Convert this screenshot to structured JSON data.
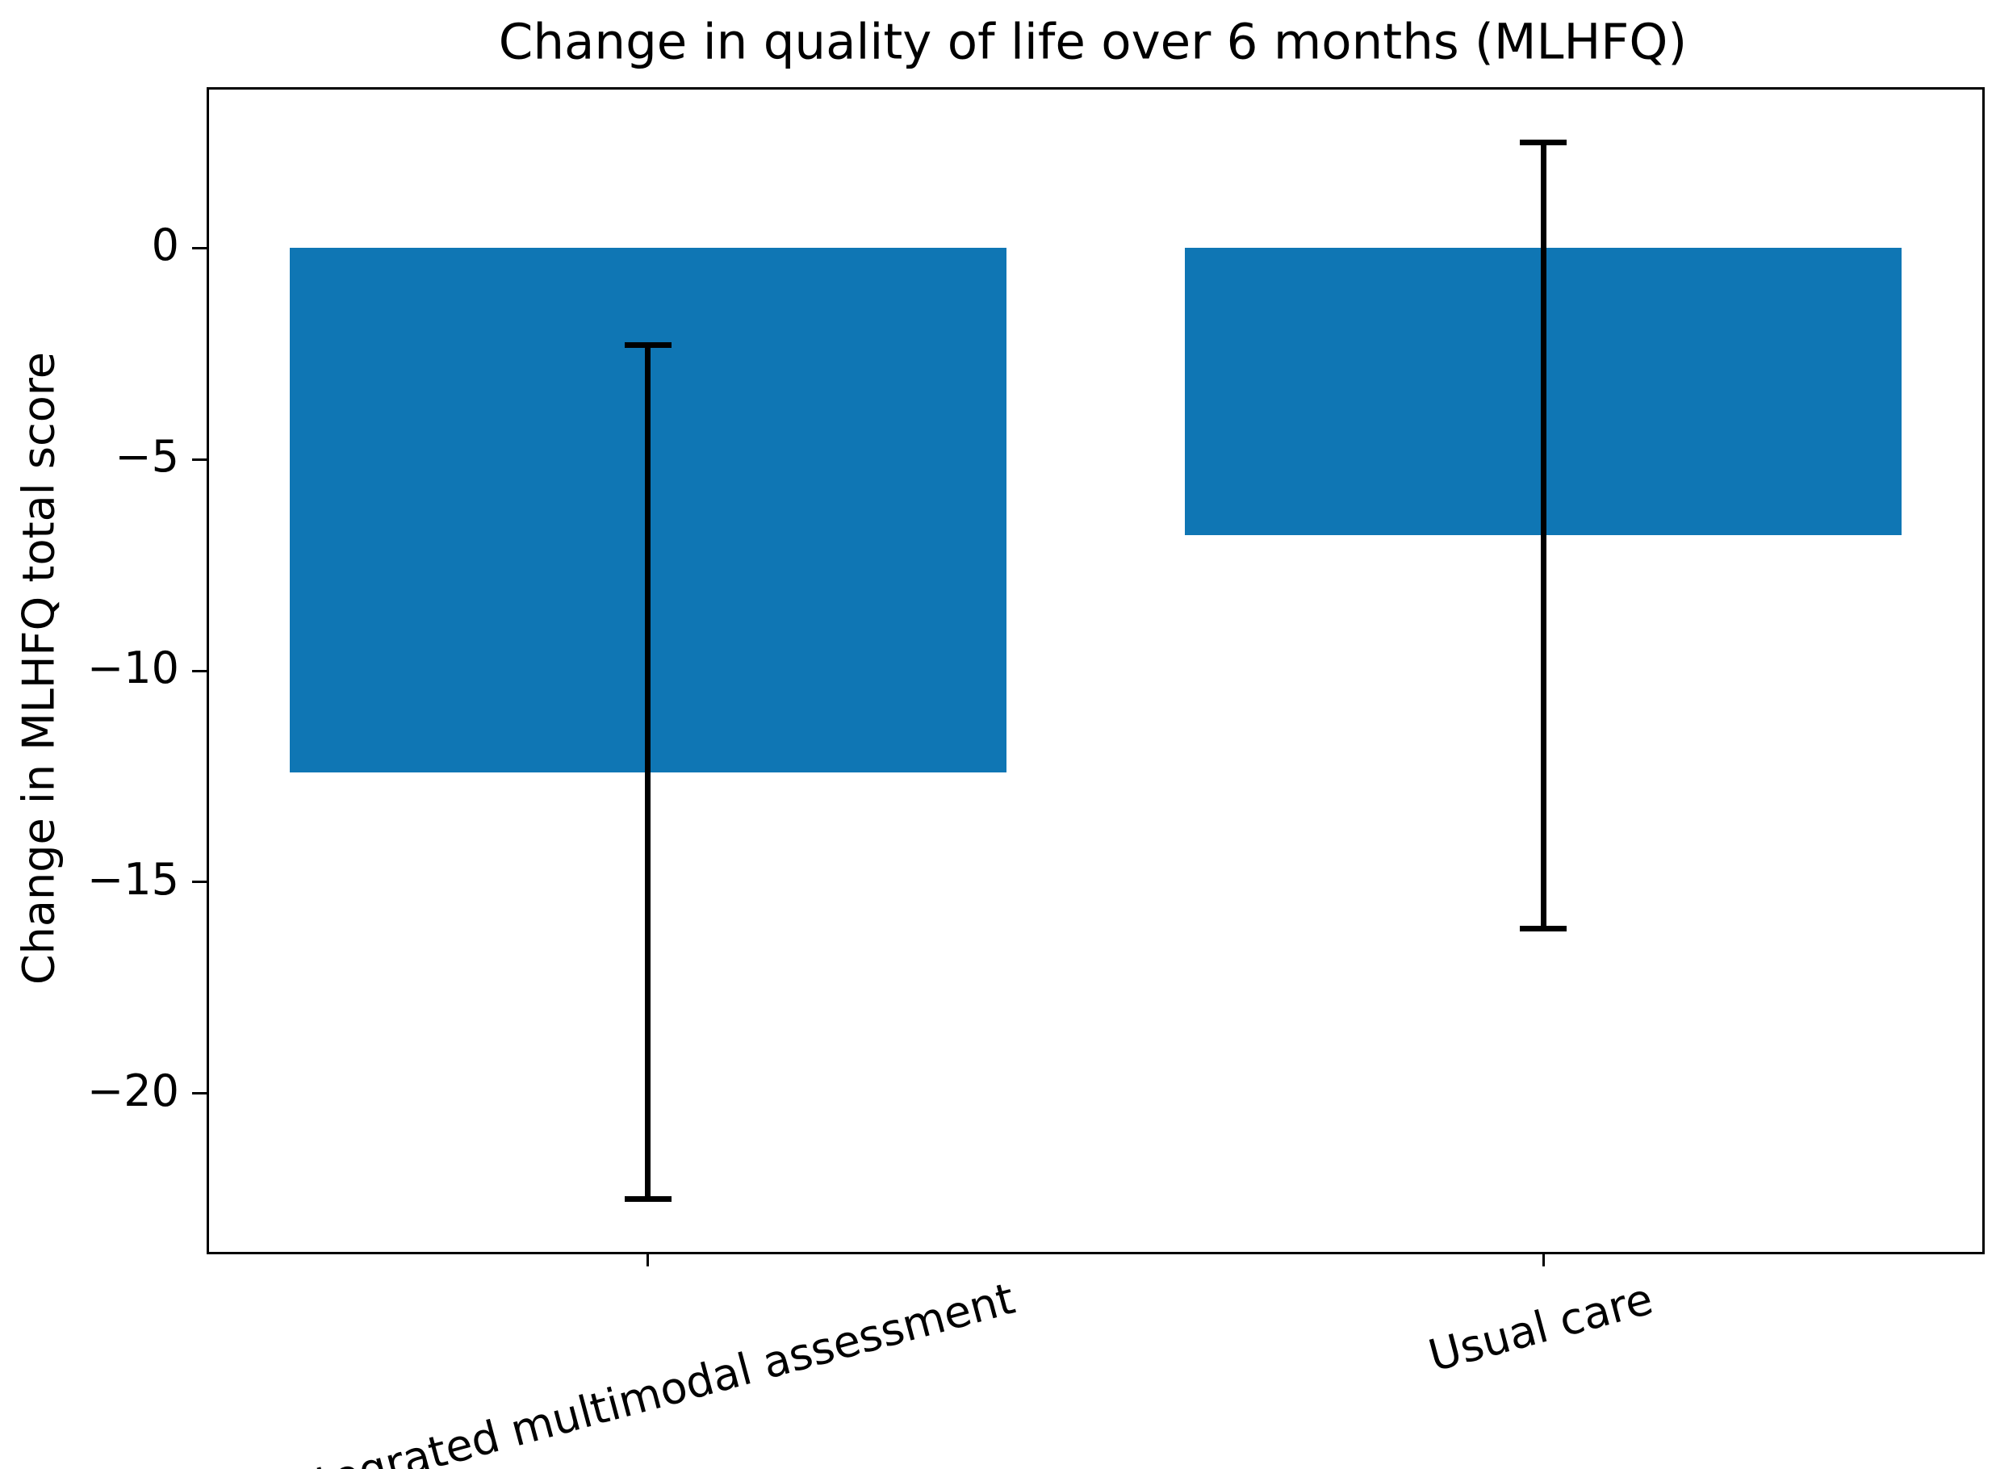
{
  "figure": {
    "background": "#ffffff",
    "text_color": "#000000"
  },
  "chart_data": {
    "type": "bar",
    "title": "Change in quality of life over 6 months (MLHFQ)",
    "ylabel": "Change in MLHFQ total score",
    "xlabel": "",
    "categories": [
      "Integrated multimodal assessment",
      "Usual care"
    ],
    "values": [
      -12.4,
      -6.8
    ],
    "errors": [
      10.1,
      9.3
    ],
    "error_intervals": [
      [
        -22.5,
        -2.3
      ],
      [
        -16.1,
        2.5
      ]
    ],
    "yticks": [
      0,
      -5,
      -10,
      -15,
      -20
    ],
    "ytick_labels": [
      "0",
      "−5",
      "−10",
      "−15",
      "−20"
    ],
    "ylim": [
      -23.75,
      3.75
    ],
    "xlim": [
      -0.49,
      1.49
    ],
    "bar_positions": [
      0,
      1
    ],
    "bar_width_units": 0.8,
    "bar_color": "#0f76b4",
    "error_bar_color": "#000000",
    "x_tick_label_rotation_deg": 15,
    "grid": false,
    "legend": "none"
  }
}
